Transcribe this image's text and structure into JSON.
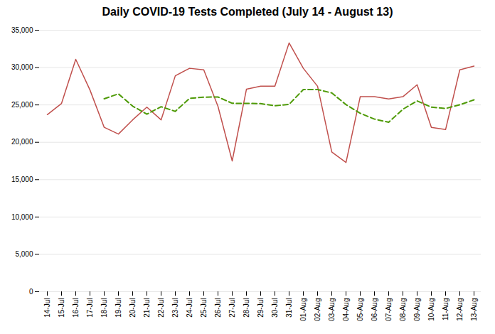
{
  "chart_data": {
    "type": "line",
    "title": "Daily COVID-19 Tests Completed (July 14 - August 13)",
    "categories": [
      "14-Jul",
      "15-Jul",
      "16-Jul",
      "17-Jul",
      "18-Jul",
      "19-Jul",
      "20-Jul",
      "21-Jul",
      "22-Jul",
      "23-Jul",
      "24-Jul",
      "25-Jul",
      "26-Jul",
      "27-Jul",
      "28-Jul",
      "29-Jul",
      "30-Jul",
      "31-Jul",
      "01-Aug",
      "02-Aug",
      "03-Aug",
      "04-Aug",
      "05-Aug",
      "06-Aug",
      "07-Aug",
      "08-Aug",
      "09-Aug",
      "10-Aug",
      "11-Aug",
      "12-Aug",
      "13-Aug"
    ],
    "series": [
      {
        "color": "#c0504d",
        "line_style": "solid",
        "values": [
          23700,
          25200,
          31100,
          27000,
          22000,
          21100,
          23000,
          24700,
          23000,
          28900,
          29900,
          29700,
          24800,
          17500,
          27100,
          27500,
          27500,
          33300,
          29900,
          27500,
          18700,
          17300,
          26100,
          26100,
          25800,
          26100,
          27700,
          22000,
          21700,
          29700,
          30200
        ]
      },
      {
        "color": "#4e9a06",
        "line_style": "dashed",
        "values": [
          null,
          null,
          null,
          null,
          25820,
          26480,
          24840,
          23760,
          24760,
          24140,
          25880,
          26040,
          26060,
          25220,
          25200,
          25180,
          24880,
          25080,
          27060,
          27060,
          26600,
          25040,
          23880,
          23100,
          22680,
          24420,
          25540,
          24700,
          24520,
          25020,
          25680
        ]
      }
    ],
    "ylim": [
      0,
      35000
    ],
    "yticks": [
      0,
      {
        "value": 5000,
        "label": "5,000"
      },
      {
        "value": 10000,
        "label": "10,000"
      },
      {
        "value": 15000,
        "label": "15,000"
      },
      {
        "value": 20000,
        "label": "20,000"
      },
      {
        "value": 25000,
        "label": "25,000"
      },
      {
        "value": 30000,
        "label": "30,000"
      },
      {
        "value": 35000,
        "label": "35,000"
      }
    ],
    "grid": true
  }
}
